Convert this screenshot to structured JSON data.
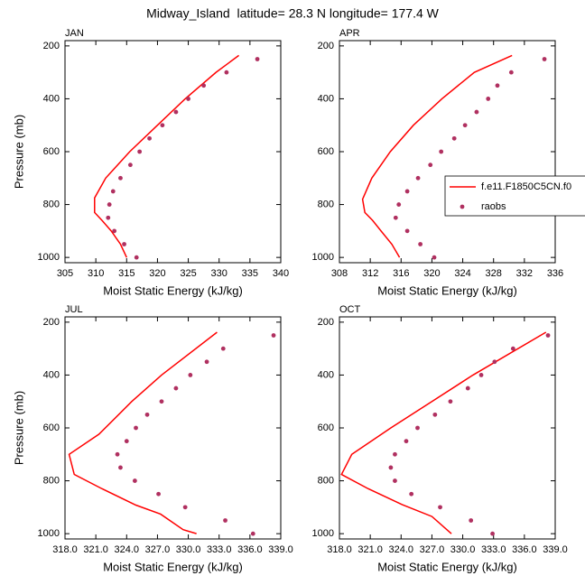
{
  "title": "Midway_Island  latitude= 28.3 N longitude= 177.4 W",
  "chart_data": [
    {
      "type": "line",
      "title": "JAN",
      "xlabel": "Moist Static Energy (kJ/kg)",
      "ylabel": "Pressure (mb)",
      "xlim": [
        305,
        340
      ],
      "xticks": [
        305,
        310,
        315,
        320,
        325,
        330,
        335,
        340
      ],
      "ylim": [
        1020,
        180
      ],
      "yticks": [
        200,
        400,
        600,
        800,
        1000
      ],
      "legend": false,
      "series": [
        {
          "mode": "lines",
          "color": "#ff0000",
          "x": [
            333.2,
            329.5,
            324.5,
            320.0,
            315.5,
            311.6,
            309.8,
            309.8,
            311.0,
            312.5,
            314.0,
            315.0
          ],
          "y": [
            236,
            300,
            400,
            500,
            600,
            700,
            775,
            830,
            860,
            900,
            950,
            1000
          ]
        },
        {
          "mode": "markers",
          "color": "#b03060",
          "x": [
            336.2,
            331.2,
            327.5,
            325.0,
            323.0,
            320.8,
            318.7,
            317.1,
            315.6,
            314.0,
            312.8,
            312.2,
            312.0,
            313.0,
            314.6,
            316.6
          ],
          "y": [
            250,
            300,
            350,
            400,
            450,
            500,
            550,
            600,
            650,
            700,
            750,
            800,
            850,
            900,
            950,
            1000
          ]
        }
      ]
    },
    {
      "type": "line",
      "title": "APR",
      "xlabel": "Moist Static Energy (kJ/kg)",
      "xlim": [
        308,
        336
      ],
      "xticks": [
        308,
        312,
        316,
        320,
        324,
        328,
        332,
        336
      ],
      "ylim": [
        1020,
        180
      ],
      "yticks": [
        200,
        400,
        600,
        800,
        1000
      ],
      "legend": true,
      "series": [
        {
          "name": "f.e11.F1850C5CN.f0",
          "mode": "lines",
          "color": "#ff0000",
          "x": [
            330.4,
            325.5,
            321.3,
            317.6,
            314.6,
            312.2,
            311.0,
            311.3,
            312.3,
            313.4,
            314.8,
            315.8
          ],
          "y": [
            236,
            300,
            400,
            500,
            600,
            700,
            780,
            830,
            860,
            900,
            950,
            1000
          ]
        },
        {
          "name": "raobs",
          "mode": "markers",
          "color": "#b03060",
          "x": [
            334.6,
            330.3,
            328.5,
            327.3,
            325.8,
            324.3,
            322.9,
            321.2,
            319.8,
            318.2,
            316.8,
            315.7,
            315.3,
            316.8,
            318.5,
            320.3
          ],
          "y": [
            250,
            300,
            350,
            400,
            450,
            500,
            550,
            600,
            650,
            700,
            750,
            800,
            850,
            900,
            950,
            1000
          ]
        }
      ]
    },
    {
      "type": "line",
      "title": "JUL",
      "xlabel": "Moist Static Energy (kJ/kg)",
      "ylabel": "Pressure (mb)",
      "xlim": [
        318,
        339
      ],
      "xticks": [
        {
          "value": 318,
          "label": "318.0"
        },
        {
          "value": 321,
          "label": "321.0"
        },
        {
          "value": 324,
          "label": "324.0"
        },
        {
          "value": 327,
          "label": "327.0"
        },
        {
          "value": 330,
          "label": "330.0"
        },
        {
          "value": 333,
          "label": "333.0"
        },
        {
          "value": 336,
          "label": "336.0"
        },
        {
          "value": 339,
          "label": "339.0"
        }
      ],
      "ylim": [
        1020,
        180
      ],
      "yticks": [
        200,
        400,
        600,
        800,
        1000
      ],
      "legend": false,
      "series": [
        {
          "mode": "lines",
          "color": "#ff0000",
          "x": [
            332.8,
            327.4,
            324.5,
            321.3,
            318.4,
            318.9,
            321.6,
            324.9,
            327.3,
            329.5,
            330.8
          ],
          "y": [
            238,
            400,
            500,
            624,
            700,
            776,
            830,
            892,
            926,
            985,
            1000
          ]
        },
        {
          "mode": "markers",
          "color": "#b03060",
          "x": [
            338.3,
            333.4,
            331.8,
            330.2,
            328.8,
            327.4,
            326.0,
            324.9,
            324.0,
            323.1,
            323.4,
            324.8,
            327.1,
            329.7,
            333.6,
            336.3
          ],
          "y": [
            250,
            300,
            350,
            400,
            450,
            500,
            550,
            600,
            650,
            700,
            750,
            800,
            850,
            900,
            950,
            1000
          ]
        }
      ]
    },
    {
      "type": "line",
      "title": "OCT",
      "xlabel": "Moist Static Energy (kJ/kg)",
      "xlim": [
        318,
        339
      ],
      "xticks": [
        {
          "value": 318,
          "label": "318.0"
        },
        {
          "value": 321,
          "label": "321.0"
        },
        {
          "value": 324,
          "label": "324.0"
        },
        {
          "value": 327,
          "label": "327.0"
        },
        {
          "value": 330,
          "label": "330.0"
        },
        {
          "value": 333,
          "label": "333.0"
        },
        {
          "value": 336,
          "label": "336.0"
        },
        {
          "value": 339,
          "label": "339.0"
        }
      ],
      "ylim": [
        1020,
        180
      ],
      "yticks": [
        200,
        400,
        600,
        800,
        1000
      ],
      "legend": false,
      "series": [
        {
          "mode": "lines",
          "color": "#ff0000",
          "x": [
            338.1,
            331.0,
            327.0,
            323.0,
            319.2,
            318.2,
            320.8,
            324.1,
            327.0,
            328.9
          ],
          "y": [
            238,
            400,
            500,
            600,
            700,
            776,
            830,
            890,
            935,
            1000
          ]
        },
        {
          "mode": "markers",
          "color": "#b03060",
          "x": [
            338.3,
            334.9,
            333.1,
            331.8,
            330.5,
            328.8,
            327.3,
            325.6,
            324.5,
            323.4,
            323.0,
            323.4,
            325.0,
            327.8,
            330.8,
            332.9
          ],
          "y": [
            250,
            300,
            350,
            400,
            450,
            500,
            550,
            600,
            650,
            700,
            750,
            800,
            850,
            900,
            950,
            1000
          ]
        }
      ]
    }
  ]
}
